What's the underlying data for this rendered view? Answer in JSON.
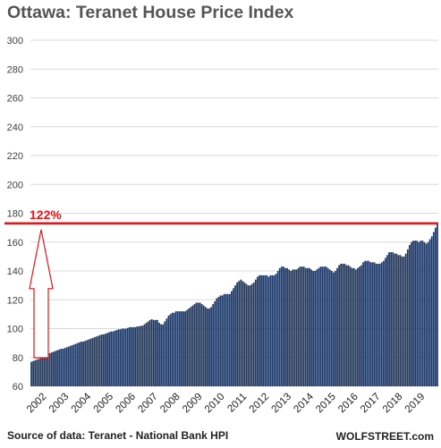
{
  "chart_data": {
    "type": "bar",
    "title": "Ottawa: Teranet House Price Index",
    "source": "Source of data: Teranet - National Bank HPI",
    "credit": "WOLFSTREET.com",
    "xlabel": "",
    "ylabel": "",
    "ylim": [
      60,
      300
    ],
    "y_ticks": [
      60,
      80,
      100,
      120,
      140,
      160,
      180,
      200,
      220,
      240,
      260,
      280,
      300
    ],
    "x_tick_labels": [
      "2002",
      "2003",
      "2004",
      "2005",
      "2006",
      "2007",
      "2008",
      "2009",
      "2010",
      "2011",
      "2012",
      "2013",
      "2014",
      "2015",
      "2016",
      "2017",
      "2018",
      "2019"
    ],
    "grid": true,
    "annotation": {
      "text": "122%",
      "reference_value": 173,
      "from_value": 78,
      "color": "#e8141b"
    },
    "colors": {
      "bar": "#1f3864",
      "grid": "#d9d9d9",
      "reference_line": "#e8141b",
      "arrow": "#e8141b",
      "title": "#555555"
    },
    "start": "2002-01",
    "interval": "month",
    "values": [
      77,
      77.5,
      78,
      78.5,
      79,
      79.5,
      80.5,
      81,
      82,
      82.5,
      83,
      83.5,
      84,
      84.5,
      85,
      85.5,
      86,
      86,
      86.5,
      87,
      87.5,
      88,
      88.5,
      89,
      89.5,
      90,
      90.5,
      91,
      91,
      91.5,
      92,
      92.5,
      93,
      93.5,
      94,
      94.5,
      95,
      95.5,
      96,
      96,
      96.5,
      97,
      97.5,
      98,
      98,
      98.5,
      99,
      99.5,
      99.5,
      100,
      100,
      100,
      100.5,
      101,
      101,
      101,
      101,
      101.5,
      101.5,
      102,
      102,
      103,
      104,
      105,
      106,
      106.5,
      106,
      106,
      106,
      104,
      103,
      103,
      105,
      107,
      109,
      110,
      111,
      111,
      112,
      112,
      112,
      112,
      112,
      112,
      113,
      114,
      115,
      116,
      117,
      118,
      118,
      118,
      117,
      116,
      115,
      114,
      114,
      115,
      117,
      119,
      121,
      122,
      123,
      123,
      124,
      124,
      124,
      124,
      126,
      128,
      130,
      132,
      133,
      134,
      133,
      132,
      131,
      130,
      130,
      131,
      132,
      134,
      136,
      137,
      137,
      137,
      137,
      137,
      136,
      137,
      137,
      137,
      138,
      140,
      142,
      143,
      143,
      142,
      142,
      141,
      140,
      141,
      141,
      141,
      142,
      143,
      143,
      143,
      142,
      142,
      142,
      141,
      140,
      140,
      141,
      142,
      143,
      143,
      143,
      143,
      142,
      141,
      140,
      139,
      140,
      142,
      144,
      145,
      145,
      145,
      144,
      144,
      143,
      142,
      142,
      141,
      142,
      143,
      144,
      146,
      147,
      147,
      147,
      146,
      146,
      146,
      145,
      145,
      145,
      146,
      147,
      149,
      151,
      153,
      153,
      153,
      152,
      152,
      151,
      151,
      150,
      150,
      152,
      155,
      158,
      160,
      161,
      161,
      161,
      160,
      161,
      161,
      160,
      159,
      160,
      162,
      164,
      167,
      170,
      173
    ]
  }
}
